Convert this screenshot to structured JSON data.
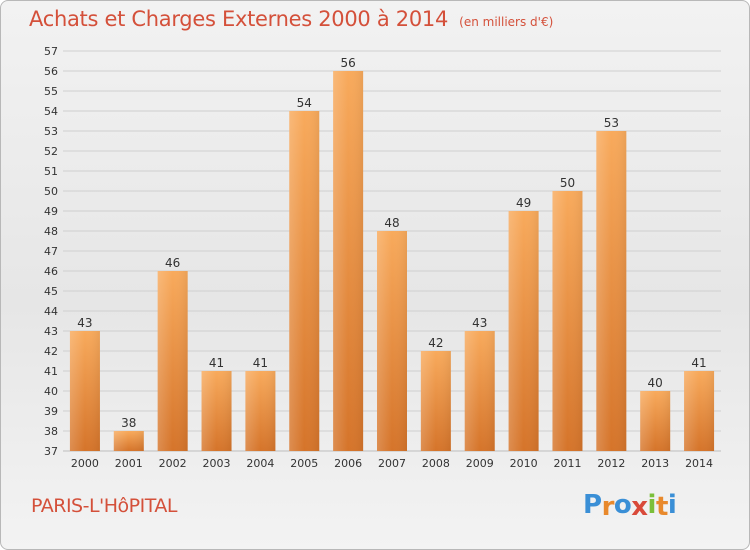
{
  "header": {
    "title": "Achats et Charges Externes 2000 à 2014",
    "subtitle": "(en milliers d'€)"
  },
  "footer": {
    "place": "PARIS-L'HôPITAL",
    "logo_text": "Proxiti",
    "logo_letters": [
      {
        "ch": "P",
        "color": "#3a8fd6"
      },
      {
        "ch": "r",
        "color": "#e8892c"
      },
      {
        "ch": "o",
        "color": "#3a8fd6"
      },
      {
        "ch": "x",
        "color": "#d94a3a"
      },
      {
        "ch": "i",
        "color": "#7bbf3a"
      },
      {
        "ch": "t",
        "color": "#e8892c"
      },
      {
        "ch": "i",
        "color": "#3a8fd6"
      }
    ]
  },
  "colors": {
    "title": "#d4503a",
    "bar_light": "#f7a85a",
    "bar_dark": "#d8772a",
    "grid": "#cfcfcf",
    "axis_text": "#333333"
  },
  "chart_data": {
    "type": "bar",
    "title": "Achats et Charges Externes 2000 à 2014",
    "subtitle": "(en milliers d'€)",
    "xlabel": "",
    "ylabel": "",
    "categories": [
      "2000",
      "2001",
      "2002",
      "2003",
      "2004",
      "2005",
      "2006",
      "2007",
      "2008",
      "2009",
      "2010",
      "2011",
      "2012",
      "2013",
      "2014"
    ],
    "values": [
      43,
      38,
      46,
      41,
      41,
      54,
      56,
      48,
      42,
      43,
      49,
      50,
      53,
      40,
      41
    ],
    "ylim": [
      37,
      57
    ],
    "yticks": [
      37,
      38,
      39,
      40,
      41,
      42,
      43,
      44,
      45,
      46,
      47,
      48,
      49,
      50,
      51,
      52,
      53,
      54,
      55,
      56,
      57
    ],
    "grid": true,
    "data_labels": true,
    "legend": "none"
  }
}
